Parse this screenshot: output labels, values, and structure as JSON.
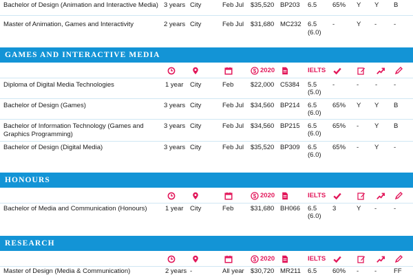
{
  "icons": {
    "duration": "clock-icon",
    "location": "location-pin-icon",
    "intake": "calendar-icon",
    "fee": "dollar-circle-icon",
    "code": "document-icon",
    "ielts_label": "IELTS",
    "atar": "check-icon",
    "portfolio": "edit-icon",
    "pathway": "trending-up-icon",
    "interview": "pencil-icon",
    "fee_year": "2020"
  },
  "top_rows": [
    {
      "name": "Bachelor of Design (Animation and Interactive Media)",
      "duration": "3 years",
      "location": "City",
      "intake": "Feb Jul",
      "fee": "$35,520",
      "code": "BP203",
      "ielts": "6.5",
      "ielts_sub": "",
      "atar": "65%",
      "c1": "Y",
      "c2": "Y",
      "c3": "B"
    },
    {
      "name": "Master of Animation, Games and Interactivity",
      "duration": "2 years",
      "location": "City",
      "intake": "Feb Jul",
      "fee": "$31,680",
      "code": "MC232",
      "ielts": "6.5",
      "ielts_sub": "(6.0)",
      "atar": "-",
      "c1": "Y",
      "c2": "-",
      "c3": "-"
    }
  ],
  "sections": [
    {
      "title": "GAMES AND INTERACTIVE MEDIA",
      "rows": [
        {
          "name": "Diploma of Digital Media Technologies",
          "duration": "1 year",
          "location": "City",
          "intake": "Feb",
          "fee": "$22,000",
          "code": "C5384",
          "ielts": "5.5",
          "ielts_sub": "(5.0)",
          "atar": "-",
          "c1": "-",
          "c2": "-",
          "c3": "-"
        },
        {
          "name": "Bachelor of Design (Games)",
          "duration": "3 years",
          "location": "City",
          "intake": "Feb Jul",
          "fee": "$34,560",
          "code": "BP214",
          "ielts": "6.5",
          "ielts_sub": "(6.0)",
          "atar": "65%",
          "c1": "Y",
          "c2": "Y",
          "c3": "B"
        },
        {
          "name": "Bachelor of Information Technology (Games and Graphics Programming)",
          "duration": "3 years",
          "location": "City",
          "intake": "Feb Jul",
          "fee": "$34,560",
          "code": "BP215",
          "ielts": "6.5",
          "ielts_sub": "(6.0)",
          "atar": "65%",
          "c1": "-",
          "c2": "Y",
          "c3": "B"
        },
        {
          "name": "Bachelor of Design (Digital Media)",
          "duration": "3 years",
          "location": "City",
          "intake": "Feb Jul",
          "fee": "$35,520",
          "code": "BP309",
          "ielts": "6.5",
          "ielts_sub": "(6.0)",
          "atar": "65%",
          "c1": "-",
          "c2": "Y",
          "c3": "-"
        }
      ]
    },
    {
      "title": "HONOURS",
      "rows": [
        {
          "name": "Bachelor of Media and Communication (Honours)",
          "duration": "1 year",
          "location": "City",
          "intake": "Feb",
          "fee": "$31,680",
          "code": "BH066",
          "ielts": "6.5",
          "ielts_sub": "(6.0)",
          "atar": "3",
          "c1": "Y",
          "c2": "-",
          "c3": "-"
        }
      ]
    },
    {
      "title": "RESEARCH",
      "rows": [
        {
          "name": "Master of Design (Media & Communication)",
          "duration": "2 years",
          "location": "-",
          "intake": "All year",
          "fee": "$30,720",
          "code": "MR211",
          "ielts": "6.5",
          "ielts_sub": "",
          "atar": "60%",
          "c1": "-",
          "c2": "-",
          "c3": "FF"
        }
      ]
    }
  ]
}
